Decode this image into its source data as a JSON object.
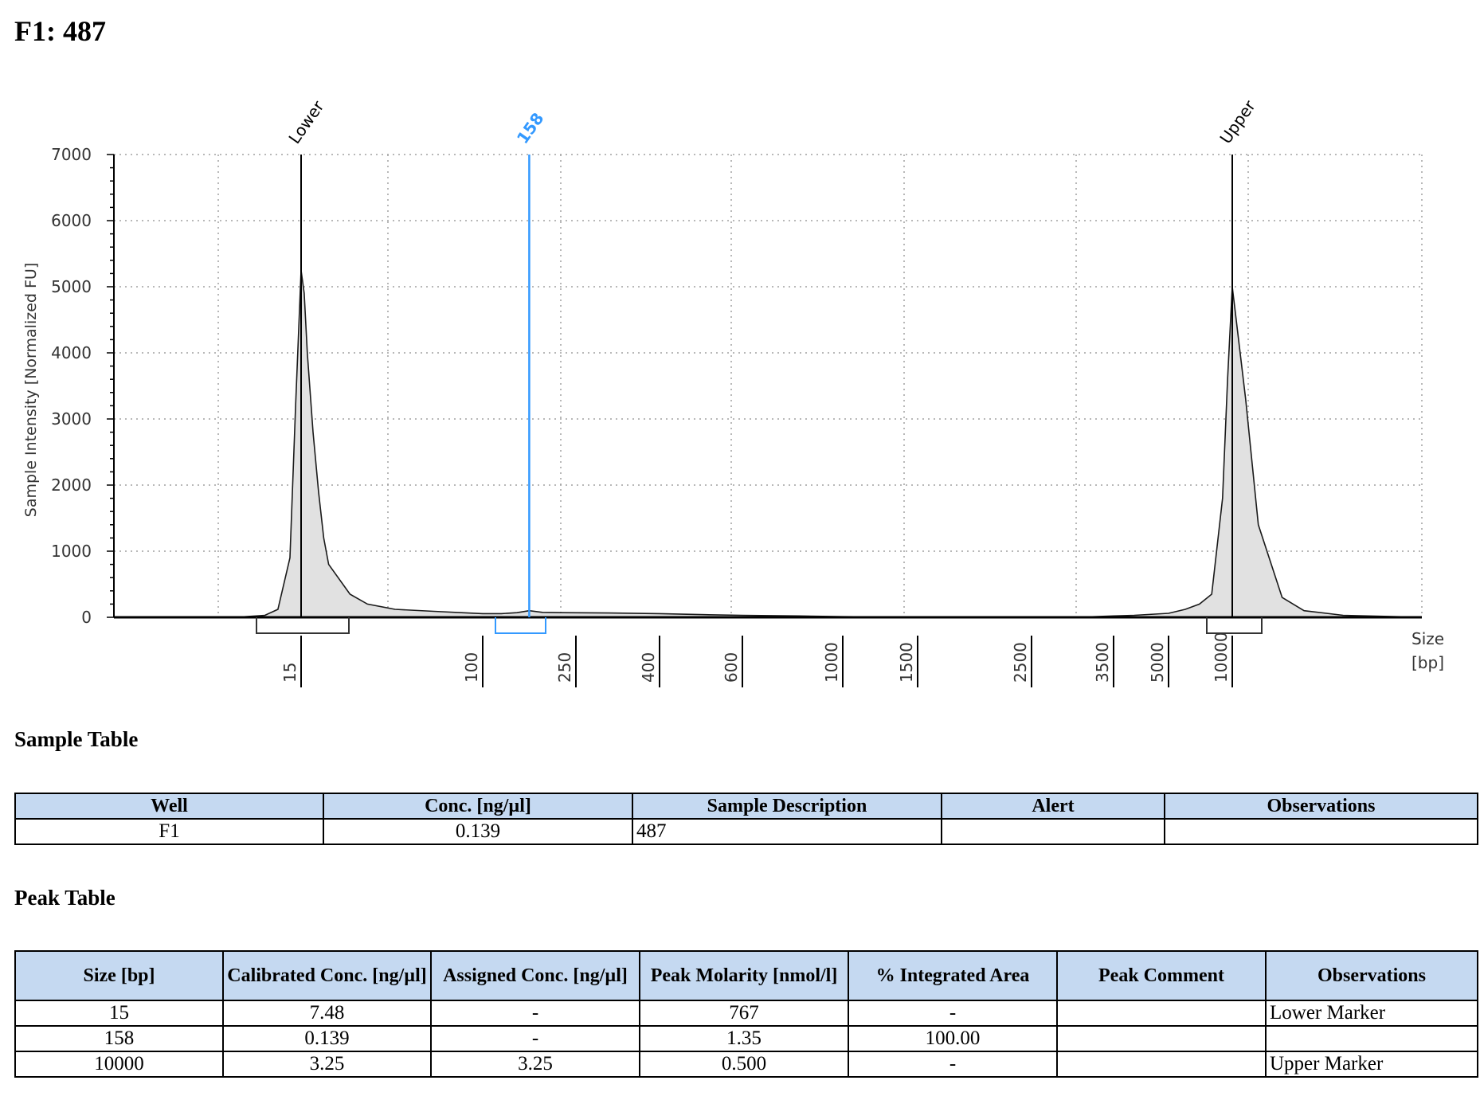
{
  "page": {
    "title": "F1: 487"
  },
  "chart_data": {
    "type": "line",
    "ylabel": "Sample Intensity [Normalized FU]",
    "xlabel": "Size\n[bp]",
    "ylim": [
      0,
      7000
    ],
    "y_ticks": [
      0,
      1000,
      2000,
      3000,
      4000,
      5000,
      6000,
      7000
    ],
    "x_ticks": [
      "15",
      "100",
      "250",
      "400",
      "600",
      "1000",
      "1500",
      "2500",
      "3500",
      "5000",
      "10000"
    ],
    "grid": true,
    "peak_markers": [
      {
        "label": "Lower",
        "size": 15,
        "color": "#000000"
      },
      {
        "label": "158",
        "size": 158,
        "color": "#3399ff"
      },
      {
        "label": "Upper",
        "size": 10000,
        "color": "#000000"
      }
    ],
    "trace": {
      "x": [
        10,
        12,
        13,
        14,
        14.5,
        15,
        15.5,
        16,
        17,
        18,
        19,
        20,
        25,
        30,
        40,
        60,
        80,
        100,
        120,
        140,
        158,
        180,
        220,
        300,
        400,
        500,
        600,
        800,
        1000,
        1500,
        2000,
        2500,
        3000,
        3500,
        4000,
        5000,
        6000,
        7000,
        8000,
        9000,
        9500,
        10000,
        10500,
        11000,
        12000,
        13000,
        15000,
        20000
      ],
      "y": [
        0,
        30,
        120,
        900,
        3200,
        5250,
        4900,
        4000,
        2800,
        1900,
        1200,
        800,
        350,
        200,
        120,
        90,
        70,
        55,
        55,
        70,
        100,
        75,
        70,
        65,
        55,
        40,
        30,
        20,
        10,
        0,
        0,
        0,
        0,
        20,
        30,
        60,
        120,
        200,
        350,
        1800,
        3600,
        5000,
        3300,
        1400,
        300,
        100,
        30,
        0
      ]
    },
    "series": [
      {
        "name": "",
        "values": []
      }
    ]
  },
  "sample_table": {
    "title": "Sample Table",
    "headers": [
      "Well",
      "Conc. [ng/µl]",
      "Sample Description",
      "Alert",
      "Observations"
    ],
    "rows": [
      [
        "F1",
        "0.139",
        "487",
        "",
        ""
      ]
    ]
  },
  "peak_table": {
    "title": "Peak Table",
    "headers": [
      "Size [bp]",
      "Calibrated Conc. [ng/µl]",
      "Assigned Conc. [ng/µl]",
      "Peak Molarity [nmol/l]",
      "% Integrated Area",
      "Peak Comment",
      "Observations"
    ],
    "rows": [
      [
        "15",
        "7.48",
        "-",
        "767",
        "-",
        "",
        "Lower Marker"
      ],
      [
        "158",
        "0.139",
        "-",
        "1.35",
        "100.00",
        "",
        ""
      ],
      [
        "10000",
        "3.25",
        "3.25",
        "0.500",
        "-",
        "",
        "Upper Marker"
      ]
    ]
  }
}
